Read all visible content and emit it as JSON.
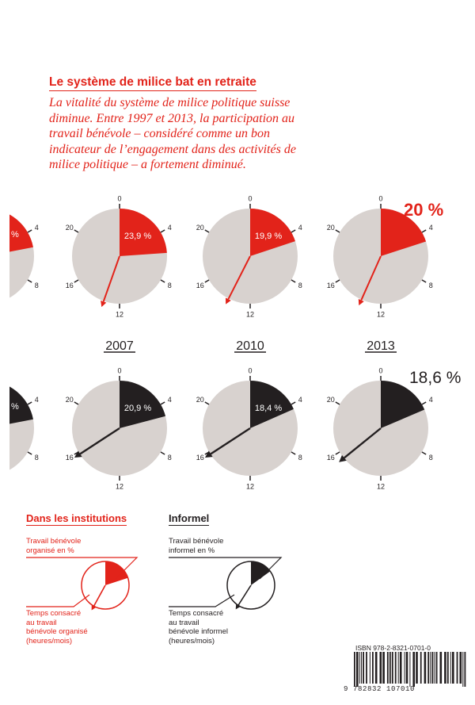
{
  "header": {
    "title": "Le système de milice bat en retraite",
    "intro": "La vitalité du système de milice politique suisse diminue. Entre 1997 et 2013, la participation au travail bénévole – considéré comme un bon indicateur de l’engagement dans des activités de milice politique – a fortement diminué."
  },
  "colors": {
    "red": "#e2231a",
    "black": "#231f20",
    "gray": "#d8d2cf"
  },
  "chart_data": {
    "type": "pie",
    "dial_max": 24,
    "dial_ticks": [
      "0",
      "4",
      "8",
      "12",
      "16",
      "20"
    ],
    "years": [
      "2007",
      "2010",
      "2013"
    ],
    "series": [
      {
        "name": "Dans les institutions",
        "color": "#e2231a",
        "percent_labels": [
          "%",
          "23,9 %",
          "19,9 %",
          "20 %"
        ],
        "percent_values": [
          null,
          23.9,
          19.9,
          20
        ],
        "hours": [
          null,
          13.3,
          13.8,
          13.6
        ]
      },
      {
        "name": "Informel",
        "color": "#231f20",
        "percent_labels": [
          "%",
          "20,9 %",
          "18,4 %",
          "18,6 %"
        ],
        "percent_values": [
          null,
          20.9,
          18.4,
          18.6
        ],
        "hours": [
          null,
          15.8,
          15.8,
          15.4
        ]
      }
    ]
  },
  "legend": {
    "institutions": {
      "title": "Dans les institutions",
      "top_label": "Travail bénévole\norganisé en %",
      "bottom_label": "Temps consacré\nau travail\nbénévole organisé\n(heures/mois)"
    },
    "informal": {
      "title": "Informel",
      "top_label": "Travail bénévole\ninformel en %",
      "bottom_label": "Temps consacré\nau travail\nbénévole informel\n(heures/mois)"
    }
  },
  "isbn": {
    "text": "ISBN 978-2-8321-0701-0",
    "digits": "9  782832  107010"
  }
}
